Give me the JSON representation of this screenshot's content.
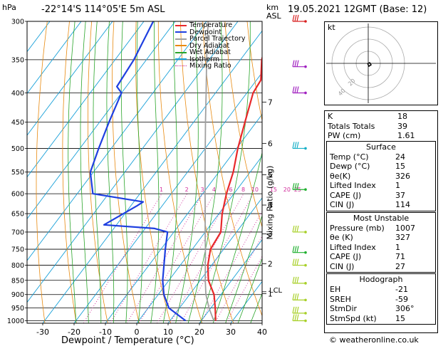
{
  "header": {
    "pressure_unit": "hPa",
    "location": "-22°14'S 114°05'E 5m ASL",
    "height_unit": "km",
    "height_unit2": "ASL",
    "datetime": "19.05.2021 12GMT (Base: 12)"
  },
  "chart_data": {
    "type": "line",
    "title": "-22°14'S 114°05'E 5m ASL",
    "xlabel": "Dewpoint / Temperature (°C)",
    "ylabel": "hPa",
    "secondary_ylabel": "Mixing Ratio (g/kg)",
    "pressure_levels": [
      300,
      350,
      400,
      450,
      500,
      550,
      600,
      650,
      700,
      750,
      800,
      850,
      900,
      950,
      1000
    ],
    "x_ticks": [
      -30,
      -20,
      -10,
      0,
      10,
      20,
      30,
      40
    ],
    "xlim": [
      -35,
      40
    ],
    "ylim": [
      1010,
      300
    ],
    "km_ticks": [
      {
        "km": "7",
        "p": 415
      },
      {
        "km": "6",
        "p": 490
      },
      {
        "km": "5",
        "p": 556
      },
      {
        "km": "4",
        "p": 628
      },
      {
        "km": "3",
        "p": 705
      },
      {
        "km": "2",
        "p": 795
      },
      {
        "km": "1",
        "p": 897
      }
    ],
    "lcl_label": "LCL",
    "lcl_p": 890,
    "mixing_ratio_labels": [
      "1",
      "2",
      "3",
      "4",
      "6",
      "8",
      "10",
      "15",
      "20",
      "25"
    ],
    "mixing_ratio_values": [
      1,
      2,
      3,
      4,
      6,
      8,
      10,
      15,
      20,
      25
    ],
    "series": [
      {
        "name": "Temperature",
        "color": "#e8282a",
        "points": [
          [
            1000,
            24.6
          ],
          [
            950,
            21.4
          ],
          [
            900,
            17.8
          ],
          [
            850,
            12.6
          ],
          [
            800,
            8.8
          ],
          [
            750,
            5.8
          ],
          [
            700,
            5.0
          ],
          [
            650,
            1.0
          ],
          [
            600,
            -2.4
          ],
          [
            550,
            -5.4
          ],
          [
            500,
            -9.6
          ],
          [
            450,
            -13.6
          ],
          [
            400,
            -18.0
          ],
          [
            380,
            -18.6
          ],
          [
            350,
            -23.2
          ],
          [
            300,
            -29.0
          ]
        ]
      },
      {
        "name": "Dewpoint",
        "color": "#1e3fe0",
        "points": [
          [
            1000,
            15.0
          ],
          [
            950,
            6.6
          ],
          [
            900,
            1.8
          ],
          [
            850,
            -2.0
          ],
          [
            800,
            -5.2
          ],
          [
            750,
            -8.6
          ],
          [
            700,
            -12.0
          ],
          [
            690,
            -17.0
          ],
          [
            680,
            -34.0
          ],
          [
            630,
            -28.0
          ],
          [
            620,
            -27.0
          ],
          [
            600,
            -45.0
          ],
          [
            550,
            -51.0
          ],
          [
            500,
            -54.0
          ],
          [
            450,
            -57.0
          ],
          [
            400,
            -60.0
          ],
          [
            390,
            -63.0
          ],
          [
            350,
            -64.0
          ],
          [
            300,
            -67.0
          ]
        ]
      },
      {
        "name": "Parcel Trajectory",
        "color": "#a0a0a0",
        "points": [
          [
            1000,
            24.0
          ],
          [
            950,
            19.4
          ],
          [
            900,
            15.2
          ],
          [
            890,
            14.5
          ],
          [
            850,
            11.6
          ],
          [
            800,
            8.0
          ],
          [
            750,
            4.2
          ],
          [
            700,
            0.0
          ],
          [
            650,
            -4.4
          ],
          [
            600,
            -9.2
          ],
          [
            550,
            -14.4
          ],
          [
            500,
            -20.0
          ],
          [
            450,
            -26.2
          ],
          [
            400,
            -33.0
          ],
          [
            350,
            -40.8
          ],
          [
            300,
            -49.5
          ]
        ]
      }
    ],
    "legend": [
      {
        "name": "Temperature",
        "color": "#e8282a",
        "dash": "solid"
      },
      {
        "name": "Dewpoint",
        "color": "#1e3fe0",
        "dash": "solid"
      },
      {
        "name": "Parcel Trajectory",
        "color": "#a0a0a0",
        "dash": "solid"
      },
      {
        "name": "Dry Adiabat",
        "color": "#e88a10",
        "dash": "solid"
      },
      {
        "name": "Wet Adiabat",
        "color": "#2aa52a",
        "dash": "solid"
      },
      {
        "name": "Isotherm",
        "color": "#18a0d8",
        "dash": "solid"
      },
      {
        "name": "Mixing Ratio",
        "color": "#d02a9a",
        "dash": "dotted"
      }
    ],
    "legend_position": "top-right"
  },
  "hodograph": {
    "label": "kt",
    "ring_labels": [
      "20",
      "40"
    ]
  },
  "indices": [
    {
      "label": "K",
      "value": "18"
    },
    {
      "label": "Totals Totals",
      "value": "39"
    },
    {
      "label": "PW (cm)",
      "value": "1.61"
    }
  ],
  "surface": {
    "title": "Surface",
    "rows": [
      {
        "label": "Temp (°C)",
        "value": "24"
      },
      {
        "label": "Dewp (°C)",
        "value": "15"
      },
      {
        "label": "θe(K)",
        "value": "326"
      },
      {
        "label": "Lifted Index",
        "value": "1"
      },
      {
        "label": "CAPE (J)",
        "value": "37"
      },
      {
        "label": "CIN (J)",
        "value": "114"
      }
    ]
  },
  "most_unstable": {
    "title": "Most Unstable",
    "rows": [
      {
        "label": "Pressure (mb)",
        "value": "1007"
      },
      {
        "label": "θe (K)",
        "value": "327"
      },
      {
        "label": "Lifted Index",
        "value": "1"
      },
      {
        "label": "CAPE (J)",
        "value": "71"
      },
      {
        "label": "CIN (J)",
        "value": "27"
      }
    ]
  },
  "hodograph_table": {
    "title": "Hodograph",
    "rows": [
      {
        "label": "EH",
        "value": "-21"
      },
      {
        "label": "SREH",
        "value": "-59"
      },
      {
        "label": "StmDir",
        "value": "306°"
      },
      {
        "label": "StmSpd (kt)",
        "value": "15"
      }
    ]
  },
  "footer": {
    "copyright": "© weatheronline.co.uk"
  }
}
